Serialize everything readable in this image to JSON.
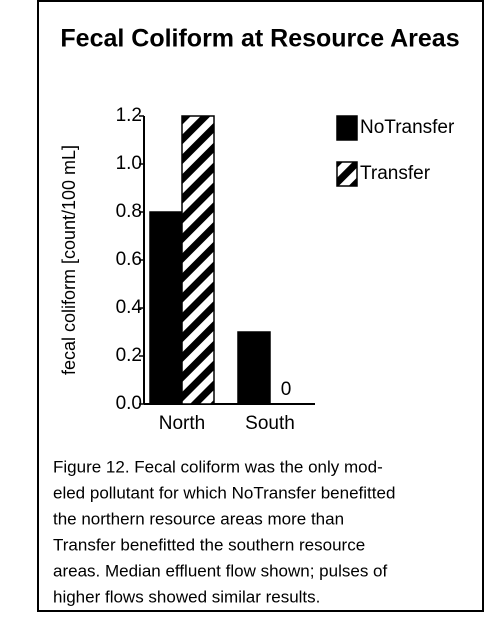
{
  "chart_data": {
    "type": "bar",
    "title": "Fecal Coliform at Resource Areas",
    "ylabel": "fecal coliform [count/100 mL]",
    "categories": [
      "North",
      "South"
    ],
    "series": [
      {
        "name": "NoTransfer",
        "color": "#000000",
        "values": [
          0.8,
          0.3
        ]
      },
      {
        "name": "Transfer",
        "color": "hatch",
        "values": [
          1.2,
          0
        ]
      }
    ],
    "ylim": [
      0,
      1.2
    ],
    "yticks": [
      {
        "value": 0,
        "label": "0.0"
      },
      0.2,
      0.4,
      0.6,
      0.8,
      {
        "value": 1,
        "label": "1.0"
      },
      1.2
    ],
    "grid": false,
    "legend": "upper right",
    "caption": [
      "Figure 12.  Fecal coliform was the only mod-",
      "eled pollutant for which NoTransfer benefitted",
      "the northern resource areas more than",
      "Transfer benefitted the southern resource",
      "areas.  Median effluent flow shown; pulses of",
      "higher flows showed similar results."
    ]
  }
}
